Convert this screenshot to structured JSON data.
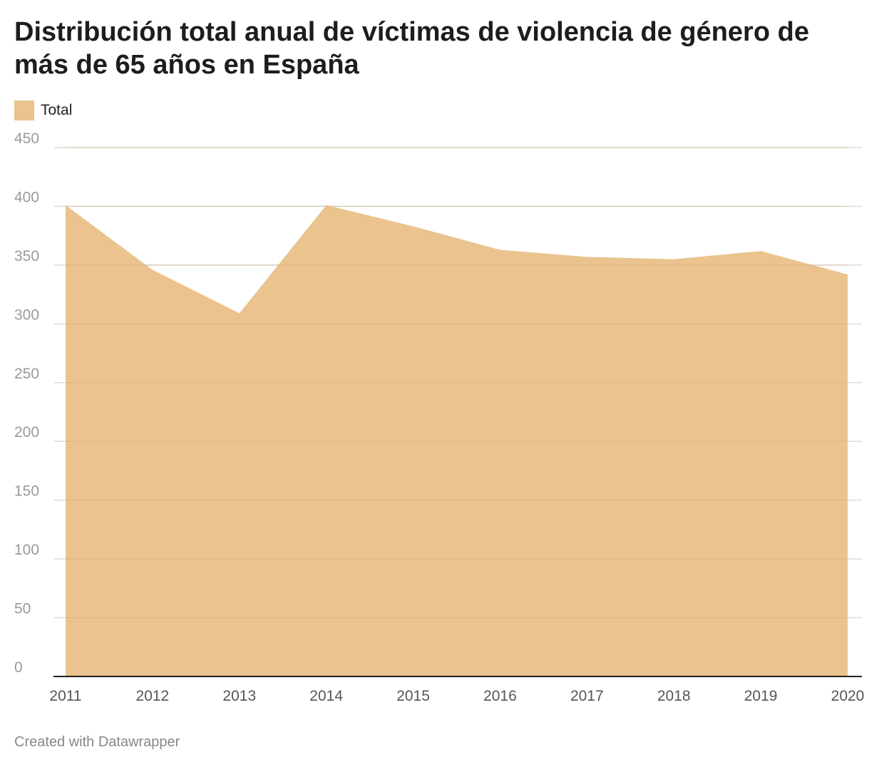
{
  "colors": {
    "area": "#eac38f",
    "grid": "#dddddd",
    "axis": "#222222"
  },
  "chart_data": {
    "type": "area",
    "title": "Distribución total anual de víctimas de violencia de género de más de 65 años en España",
    "xlabel": "",
    "ylabel": "",
    "legend": {
      "position": "top-left",
      "entries": [
        "Total"
      ]
    },
    "grid": true,
    "ylim": [
      0,
      450
    ],
    "yticks": [
      0,
      50,
      100,
      150,
      200,
      250,
      300,
      350,
      400,
      450
    ],
    "x": [
      "2011",
      "2012",
      "2013",
      "2014",
      "2015",
      "2016",
      "2017",
      "2018",
      "2019",
      "2020"
    ],
    "series": [
      {
        "name": "Total",
        "values": [
          401,
          346,
          309,
          401,
          383,
          363,
          357,
          355,
          362,
          342
        ]
      }
    ]
  },
  "footer": "Created with Datawrapper"
}
